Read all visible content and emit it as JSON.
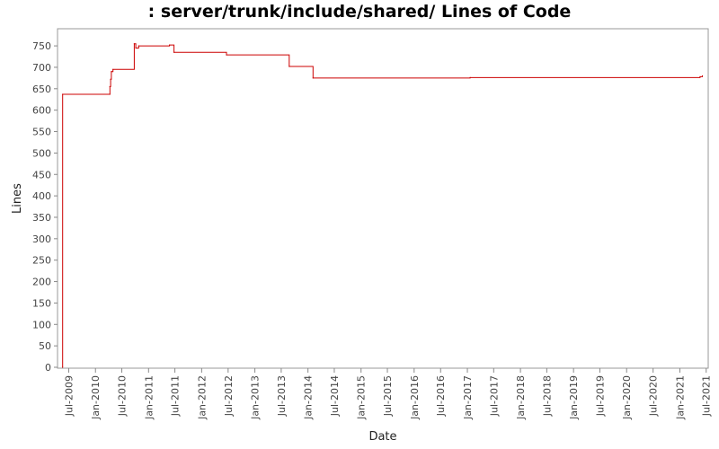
{
  "chart_data": {
    "type": "line",
    "title": ": server/trunk/include/shared/ Lines of Code",
    "xlabel": "Date",
    "ylabel": "Lines",
    "ylim": [
      0,
      790
    ],
    "yticks": [
      0,
      50,
      100,
      150,
      200,
      250,
      300,
      350,
      400,
      450,
      500,
      550,
      600,
      650,
      700,
      750
    ],
    "xticks": [
      {
        "label": "Jul-2009",
        "date": "2009-07-01"
      },
      {
        "label": "Jan-2010",
        "date": "2010-01-01"
      },
      {
        "label": "Jul-2010",
        "date": "2010-07-01"
      },
      {
        "label": "Jan-2011",
        "date": "2011-01-01"
      },
      {
        "label": "Jul-2011",
        "date": "2011-07-01"
      },
      {
        "label": "Jan-2012",
        "date": "2012-01-01"
      },
      {
        "label": "Jul-2012",
        "date": "2012-07-01"
      },
      {
        "label": "Jan-2013",
        "date": "2013-01-01"
      },
      {
        "label": "Jul-2013",
        "date": "2013-07-01"
      },
      {
        "label": "Jan-2014",
        "date": "2014-01-01"
      },
      {
        "label": "Jul-2014",
        "date": "2014-07-01"
      },
      {
        "label": "Jan-2015",
        "date": "2015-01-01"
      },
      {
        "label": "Jul-2015",
        "date": "2015-07-01"
      },
      {
        "label": "Jan-2016",
        "date": "2016-01-01"
      },
      {
        "label": "Jul-2016",
        "date": "2016-07-01"
      },
      {
        "label": "Jan-2017",
        "date": "2017-01-01"
      },
      {
        "label": "Jul-2017",
        "date": "2017-07-01"
      },
      {
        "label": "Jan-2018",
        "date": "2018-01-01"
      },
      {
        "label": "Jul-2018",
        "date": "2018-07-01"
      },
      {
        "label": "Jan-2019",
        "date": "2019-01-01"
      },
      {
        "label": "Jul-2019",
        "date": "2019-07-01"
      },
      {
        "label": "Jan-2020",
        "date": "2020-01-01"
      },
      {
        "label": "Jul-2020",
        "date": "2020-07-01"
      },
      {
        "label": "Jan-2021",
        "date": "2021-01-01"
      },
      {
        "label": "Jul-2021",
        "date": "2021-07-01"
      }
    ],
    "xlim": [
      "2009-04-15",
      "2021-07-15"
    ],
    "step": true,
    "grid": false,
    "line_color": "#cc0000",
    "points": [
      {
        "x": "2009-05-20",
        "y": 0
      },
      {
        "x": "2009-05-20",
        "y": 637
      },
      {
        "x": "2010-04-10",
        "y": 637
      },
      {
        "x": "2010-04-10",
        "y": 655
      },
      {
        "x": "2010-04-15",
        "y": 672
      },
      {
        "x": "2010-04-20",
        "y": 690
      },
      {
        "x": "2010-05-01",
        "y": 695
      },
      {
        "x": "2010-09-25",
        "y": 755
      },
      {
        "x": "2010-10-05",
        "y": 745
      },
      {
        "x": "2010-10-25",
        "y": 750
      },
      {
        "x": "2011-05-25",
        "y": 752
      },
      {
        "x": "2011-06-25",
        "y": 735
      },
      {
        "x": "2012-06-20",
        "y": 729
      },
      {
        "x": "2013-08-25",
        "y": 702
      },
      {
        "x": "2014-02-05",
        "y": 675
      },
      {
        "x": "2017-01-20",
        "y": 676
      },
      {
        "x": "2021-05-20",
        "y": 678
      },
      {
        "x": "2021-06-05",
        "y": 680
      }
    ]
  }
}
